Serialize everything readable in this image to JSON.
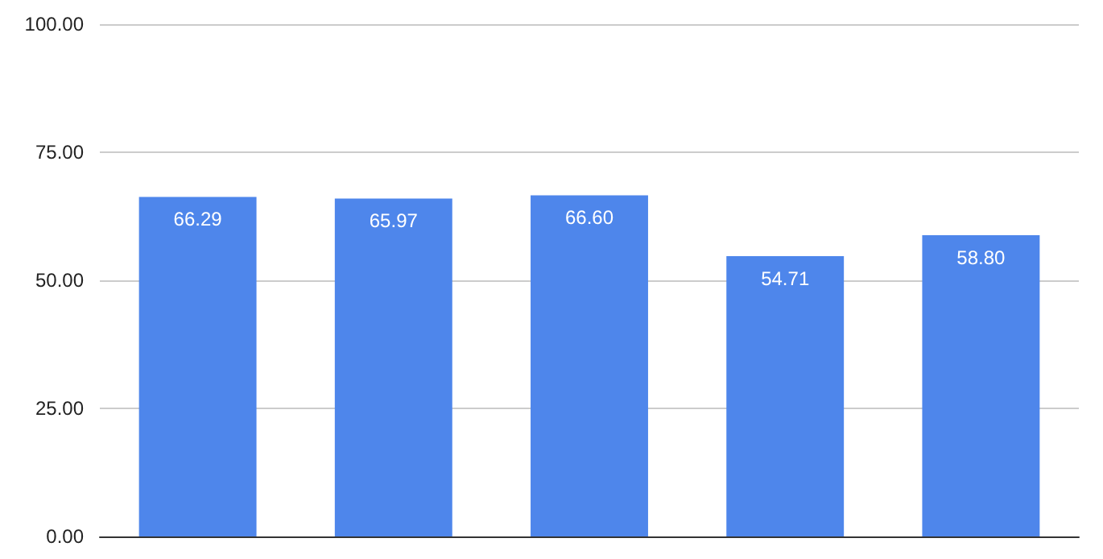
{
  "chart_data": {
    "type": "bar",
    "categories": [
      null,
      null,
      null,
      null,
      null
    ],
    "values": [
      66.29,
      65.97,
      66.6,
      54.71,
      58.8
    ],
    "value_labels": [
      "66.29",
      "65.97",
      "66.60",
      "54.71",
      "58.80"
    ],
    "color": "#4e86eb",
    "ylim": [
      0,
      100
    ],
    "yticks": [
      {
        "value": 0,
        "label": "0.00"
      },
      {
        "value": 25,
        "label": "25.00"
      },
      {
        "value": 50,
        "label": "50.00"
      },
      {
        "value": 75,
        "label": "75.00"
      },
      {
        "value": 100,
        "label": "100.00"
      }
    ],
    "grid": "y"
  }
}
